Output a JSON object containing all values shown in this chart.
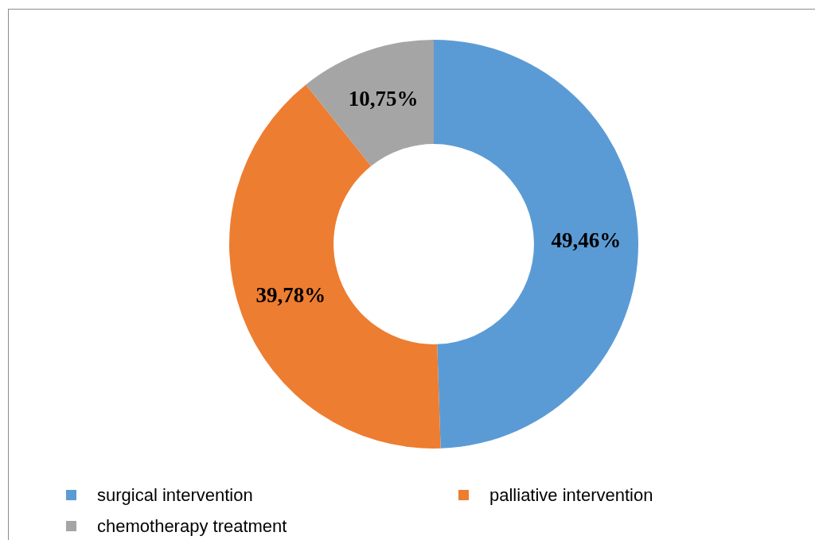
{
  "chart_data": {
    "type": "donut",
    "categories": [
      "surgical intervention",
      "palliative intervention",
      "chemotherapy treatment"
    ],
    "values": [
      49.46,
      39.78,
      10.75
    ],
    "colors": [
      "#5b9bd5",
      "#ed7d31",
      "#a5a5a5"
    ],
    "value_labels": [
      "49,46%",
      "39,78%",
      "10,75%"
    ],
    "legend": "bottom"
  }
}
